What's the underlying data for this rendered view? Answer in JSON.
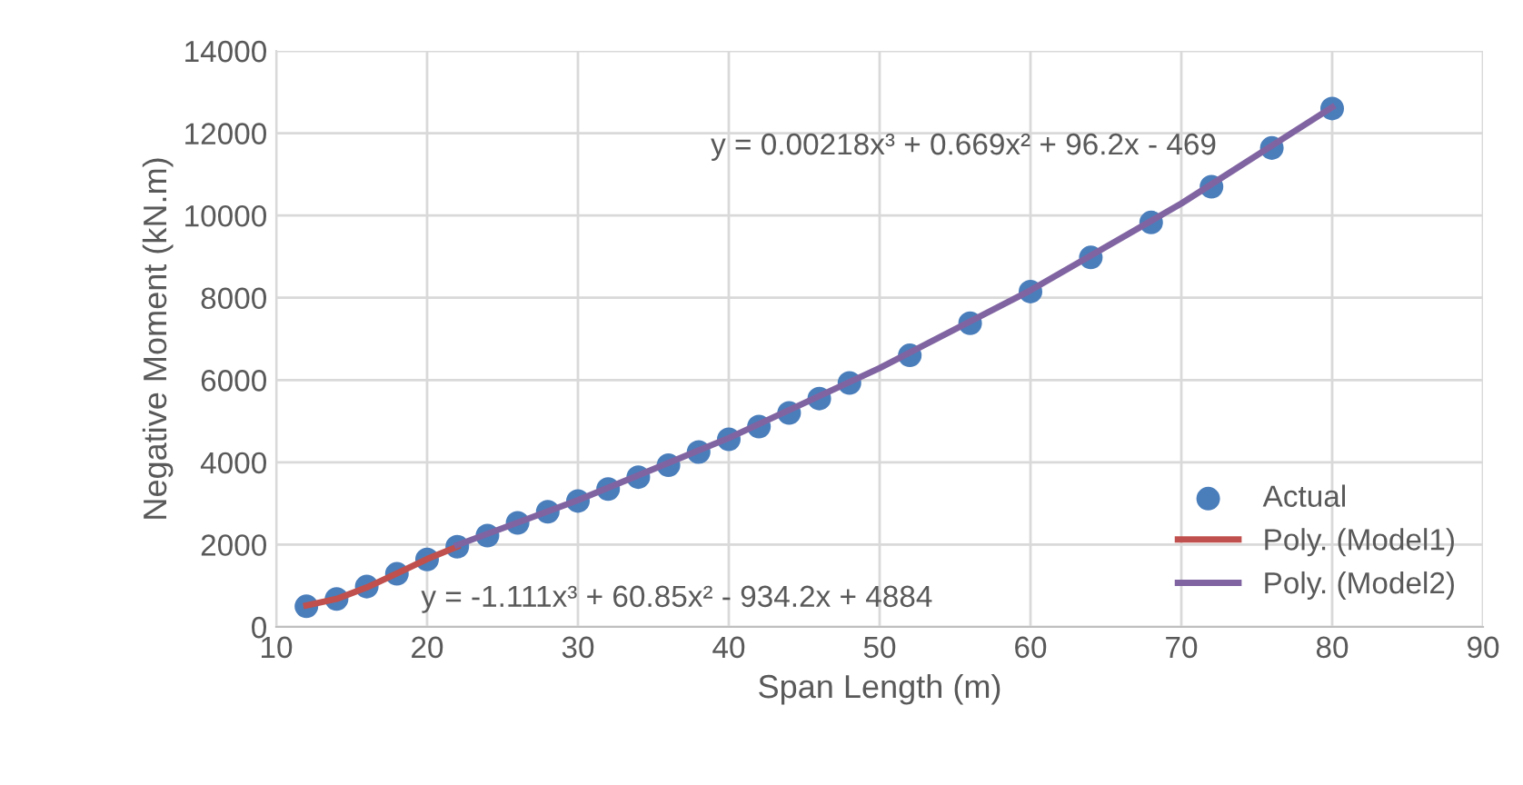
{
  "chart_data": {
    "type": "scatter",
    "xlabel": "Span Length (m)",
    "ylabel": "Negative Moment (kN.m)",
    "xlim": [
      10,
      90
    ],
    "xticks": [
      10,
      20,
      30,
      40,
      50,
      60,
      70,
      80,
      90
    ],
    "ylim": [
      0,
      14000
    ],
    "yticks": [
      0,
      2000,
      4000,
      6000,
      8000,
      10000,
      12000,
      14000
    ],
    "grid": true,
    "legend": "bottom right",
    "series": [
      {
        "name": "Actual",
        "marker": "circle",
        "color": "#4a7ebb",
        "x": [
          12,
          14,
          16,
          18,
          20,
          22,
          24,
          26,
          28,
          30,
          32,
          34,
          36,
          38,
          40,
          42,
          44,
          46,
          48,
          52,
          56,
          60,
          64,
          68,
          72,
          76,
          80
        ],
        "values": [
          500,
          680,
          980,
          1290,
          1640,
          1950,
          2220,
          2530,
          2800,
          3060,
          3350,
          3640,
          3930,
          4250,
          4560,
          4870,
          5200,
          5550,
          5930,
          6600,
          7380,
          8150,
          8980,
          9830,
          10700,
          11640,
          12600
        ]
      },
      {
        "name": "Poly. (Model1)",
        "type": "line",
        "color": "#c0504d",
        "x": [
          12,
          14,
          16,
          18,
          20,
          22
        ],
        "values": [
          520,
          680,
          960,
          1300,
          1650,
          1950
        ]
      },
      {
        "name": "Poly. (Model2)",
        "type": "line",
        "color": "#8064a2",
        "x": [
          22,
          30,
          40,
          50,
          60,
          70,
          80
        ],
        "values": [
          1990,
          3080,
          4590,
          6290,
          8180,
          10290,
          12630
        ]
      }
    ],
    "annotations": [
      "y = 0.00218x³ + 0.669x² + 96.2x - 469",
      "y = -1.111x³ + 60.85x² - 934.2x + 4884"
    ]
  }
}
